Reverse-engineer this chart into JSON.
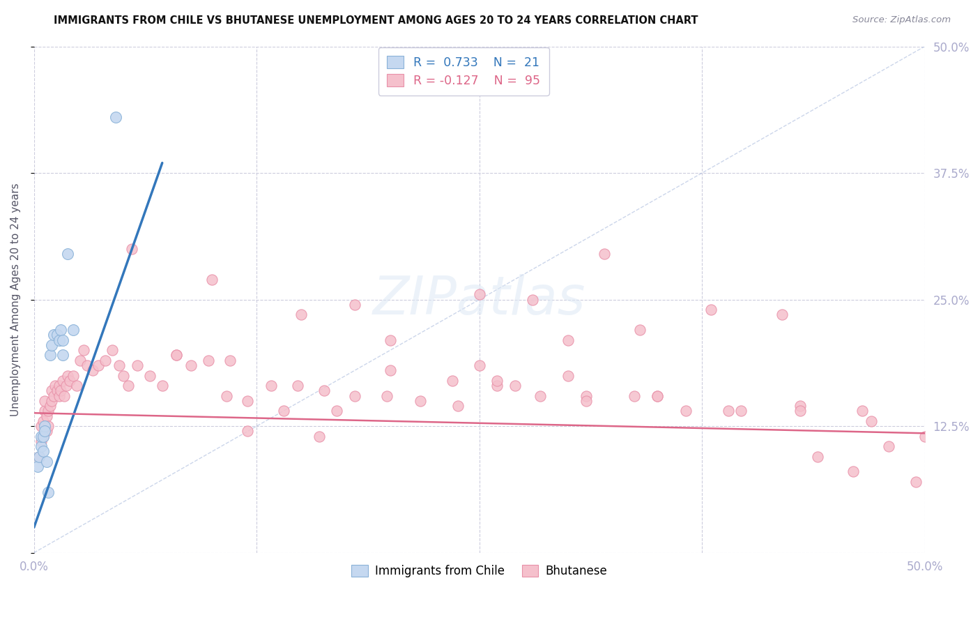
{
  "title": "IMMIGRANTS FROM CHILE VS BHUTANESE UNEMPLOYMENT AMONG AGES 20 TO 24 YEARS CORRELATION CHART",
  "source": "Source: ZipAtlas.com",
  "ylabel": "Unemployment Among Ages 20 to 24 years",
  "xlim": [
    0.0,
    0.5
  ],
  "ylim": [
    0.0,
    0.5
  ],
  "xticks": [
    0.0,
    0.125,
    0.25,
    0.375,
    0.5
  ],
  "yticks": [
    0.0,
    0.125,
    0.25,
    0.375,
    0.5
  ],
  "xtick_labels": [
    "0.0%",
    "",
    "",
    "",
    "50.0%"
  ],
  "ytick_labels_right": [
    "",
    "12.5%",
    "25.0%",
    "37.5%",
    "50.0%"
  ],
  "grid_color": "#ccccdd",
  "background_color": "#ffffff",
  "chile_color": "#c5d8f0",
  "chile_edge_color": "#8ab2d8",
  "bhutan_color": "#f5c0cc",
  "bhutan_edge_color": "#e890a8",
  "chile_R": 0.733,
  "chile_N": 21,
  "bhutan_R": -0.127,
  "bhutan_N": 95,
  "legend_label_chile": "Immigrants from Chile",
  "legend_label_bhutan": "Bhutanese",
  "chile_line_color": "#3377bb",
  "bhutan_line_color": "#dd6688",
  "chile_line_x": [
    0.0,
    0.072
  ],
  "chile_line_y": [
    0.025,
    0.385
  ],
  "bhutan_line_x": [
    0.0,
    0.5
  ],
  "bhutan_line_y": [
    0.138,
    0.118
  ],
  "dashed_line_color": "#aabbdd",
  "dashed_line_x": [
    0.0,
    0.5
  ],
  "dashed_line_y": [
    0.0,
    0.5
  ],
  "chile_points_x": [
    0.002,
    0.003,
    0.004,
    0.004,
    0.005,
    0.005,
    0.006,
    0.006,
    0.007,
    0.008,
    0.009,
    0.01,
    0.011,
    0.013,
    0.014,
    0.015,
    0.016,
    0.016,
    0.019,
    0.022,
    0.046
  ],
  "chile_points_y": [
    0.085,
    0.095,
    0.105,
    0.115,
    0.1,
    0.115,
    0.125,
    0.12,
    0.09,
    0.06,
    0.195,
    0.205,
    0.215,
    0.215,
    0.21,
    0.22,
    0.195,
    0.21,
    0.295,
    0.22,
    0.43
  ],
  "bhutan_points_x": [
    0.003,
    0.004,
    0.004,
    0.005,
    0.005,
    0.006,
    0.006,
    0.007,
    0.007,
    0.008,
    0.008,
    0.009,
    0.01,
    0.01,
    0.011,
    0.012,
    0.013,
    0.014,
    0.014,
    0.015,
    0.016,
    0.017,
    0.018,
    0.019,
    0.02,
    0.022,
    0.024,
    0.026,
    0.028,
    0.03,
    0.033,
    0.036,
    0.04,
    0.044,
    0.048,
    0.053,
    0.058,
    0.065,
    0.072,
    0.08,
    0.088,
    0.098,
    0.108,
    0.12,
    0.133,
    0.148,
    0.163,
    0.18,
    0.198,
    0.217,
    0.238,
    0.26,
    0.284,
    0.31,
    0.337,
    0.366,
    0.397,
    0.43,
    0.465,
    0.5,
    0.05,
    0.08,
    0.11,
    0.14,
    0.17,
    0.2,
    0.235,
    0.27,
    0.31,
    0.35,
    0.39,
    0.43,
    0.47,
    0.055,
    0.1,
    0.15,
    0.2,
    0.25,
    0.3,
    0.35,
    0.25,
    0.32,
    0.18,
    0.28,
    0.42,
    0.38,
    0.34,
    0.3,
    0.26,
    0.48,
    0.44,
    0.16,
    0.12,
    0.46,
    0.495
  ],
  "bhutan_points_y": [
    0.095,
    0.11,
    0.125,
    0.115,
    0.13,
    0.14,
    0.15,
    0.12,
    0.135,
    0.125,
    0.14,
    0.145,
    0.15,
    0.16,
    0.155,
    0.165,
    0.16,
    0.155,
    0.165,
    0.16,
    0.17,
    0.155,
    0.165,
    0.175,
    0.17,
    0.175,
    0.165,
    0.19,
    0.2,
    0.185,
    0.18,
    0.185,
    0.19,
    0.2,
    0.185,
    0.165,
    0.185,
    0.175,
    0.165,
    0.195,
    0.185,
    0.19,
    0.155,
    0.15,
    0.165,
    0.165,
    0.16,
    0.155,
    0.155,
    0.15,
    0.145,
    0.165,
    0.155,
    0.155,
    0.155,
    0.14,
    0.14,
    0.145,
    0.14,
    0.115,
    0.175,
    0.195,
    0.19,
    0.14,
    0.14,
    0.18,
    0.17,
    0.165,
    0.15,
    0.155,
    0.14,
    0.14,
    0.13,
    0.3,
    0.27,
    0.235,
    0.21,
    0.185,
    0.175,
    0.155,
    0.255,
    0.295,
    0.245,
    0.25,
    0.235,
    0.24,
    0.22,
    0.21,
    0.17,
    0.105,
    0.095,
    0.115,
    0.12,
    0.08,
    0.07
  ]
}
